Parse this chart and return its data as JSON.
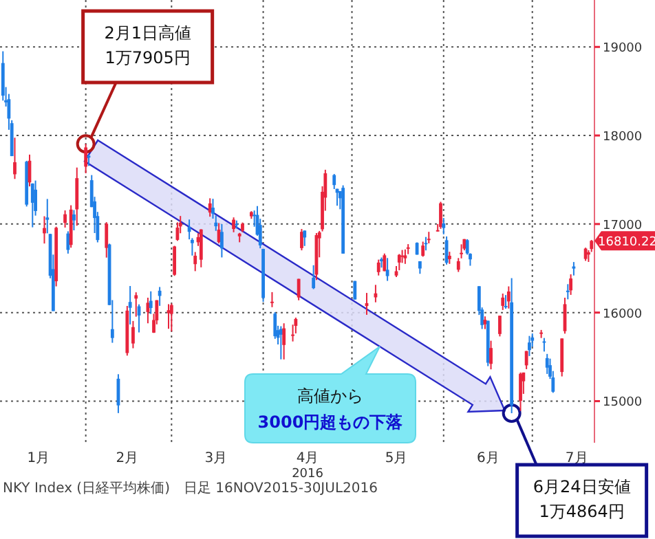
{
  "chart_data": {
    "type": "candlestick",
    "xlabel": "2016",
    "xlim": [
      "2016-01-03",
      "2016-07-22"
    ],
    "xticks": [
      {
        "value": "2016-01-16",
        "label": "1月"
      },
      {
        "value": "2016-02-01",
        "label": null
      },
      {
        "value": "2016-02-15",
        "label": "2月"
      },
      {
        "value": "2016-03-01",
        "label": null
      },
      {
        "value": "2016-03-16",
        "label": "3月"
      },
      {
        "value": "2016-04-01",
        "label": null
      },
      {
        "value": "2016-04-16",
        "label": "4月"
      },
      {
        "value": "2016-05-01",
        "label": null
      },
      {
        "value": "2016-05-16",
        "label": "5月"
      },
      {
        "value": "2016-06-01",
        "label": null
      },
      {
        "value": "2016-06-16",
        "label": "6月"
      },
      {
        "value": "2016-07-01",
        "label": null
      },
      {
        "value": "2016-07-16",
        "label": "7月"
      }
    ],
    "ylim": [
      14530,
      19530
    ],
    "yticks": [
      15000,
      16000,
      17000,
      18000,
      19000
    ],
    "grid": true,
    "x": [
      "2016-01-04",
      "2016-01-05",
      "2016-01-06",
      "2016-01-07",
      "2016-01-08",
      "2016-01-12",
      "2016-01-13",
      "2016-01-14",
      "2016-01-15",
      "2016-01-18",
      "2016-01-19",
      "2016-01-20",
      "2016-01-21",
      "2016-01-22",
      "2016-01-25",
      "2016-01-26",
      "2016-01-27",
      "2016-01-28",
      "2016-01-29",
      "2016-02-01",
      "2016-02-02",
      "2016-02-03",
      "2016-02-04",
      "2016-02-05",
      "2016-02-08",
      "2016-02-09",
      "2016-02-10",
      "2016-02-12",
      "2016-02-15",
      "2016-02-16",
      "2016-02-17",
      "2016-02-18",
      "2016-02-19",
      "2016-02-22",
      "2016-02-23",
      "2016-02-24",
      "2016-02-25",
      "2016-02-26",
      "2016-02-29",
      "2016-03-01",
      "2016-03-02",
      "2016-03-03",
      "2016-03-04",
      "2016-03-07",
      "2016-03-08",
      "2016-03-09",
      "2016-03-10",
      "2016-03-11",
      "2016-03-14",
      "2016-03-15",
      "2016-03-16",
      "2016-03-17",
      "2016-03-18",
      "2016-03-22",
      "2016-03-23",
      "2016-03-24",
      "2016-03-25",
      "2016-03-28",
      "2016-03-29",
      "2016-03-30",
      "2016-03-31",
      "2016-04-01",
      "2016-04-04",
      "2016-04-05",
      "2016-04-06",
      "2016-04-07",
      "2016-04-08",
      "2016-04-11",
      "2016-04-12",
      "2016-04-13",
      "2016-04-14",
      "2016-04-15",
      "2016-04-18",
      "2016-04-19",
      "2016-04-20",
      "2016-04-21",
      "2016-04-22",
      "2016-04-25",
      "2016-04-26",
      "2016-04-27",
      "2016-04-28",
      "2016-05-02",
      "2016-05-06",
      "2016-05-09",
      "2016-05-10",
      "2016-05-11",
      "2016-05-12",
      "2016-05-13",
      "2016-05-16",
      "2016-05-17",
      "2016-05-18",
      "2016-05-19",
      "2016-05-20",
      "2016-05-23",
      "2016-05-24",
      "2016-05-25",
      "2016-05-26",
      "2016-05-27",
      "2016-05-30",
      "2016-05-31",
      "2016-06-01",
      "2016-06-02",
      "2016-06-03",
      "2016-06-06",
      "2016-06-07",
      "2016-06-08",
      "2016-06-09",
      "2016-06-10",
      "2016-06-13",
      "2016-06-14",
      "2016-06-15",
      "2016-06-16",
      "2016-06-17",
      "2016-06-20",
      "2016-06-21",
      "2016-06-22",
      "2016-06-23",
      "2016-06-24",
      "2016-06-27",
      "2016-06-28",
      "2016-06-29",
      "2016-06-30",
      "2016-07-01",
      "2016-07-04",
      "2016-07-05",
      "2016-07-06",
      "2016-07-07",
      "2016-07-08",
      "2016-07-11",
      "2016-07-12",
      "2016-07-13",
      "2016-07-14",
      "2016-07-15",
      "2016-07-19",
      "2016-07-20",
      "2016-07-21"
    ],
    "ohlc": [
      [
        18818,
        18951,
        18394,
        18450
      ],
      [
        18398,
        18547,
        18327,
        18374
      ],
      [
        18410,
        18469,
        18064,
        18191
      ],
      [
        18139,
        18172,
        17767,
        17767
      ],
      [
        17562,
        17975,
        17509,
        17698
      ],
      [
        17704,
        17714,
        17198,
        17219
      ],
      [
        17470,
        17784,
        17425,
        17715
      ],
      [
        17458,
        17459,
        16963,
        17240
      ],
      [
        17388,
        17491,
        17095,
        17147
      ],
      [
        16895,
        17088,
        16780,
        16955
      ],
      [
        17074,
        17283,
        16895,
        17048
      ],
      [
        16888,
        16890,
        16387,
        16416
      ],
      [
        16491,
        16655,
        16017,
        16017
      ],
      [
        16354,
        16970,
        16296,
        16958
      ],
      [
        17013,
        17154,
        16960,
        17110
      ],
      [
        16893,
        16918,
        16666,
        16708
      ],
      [
        16764,
        17212,
        16733,
        17163
      ],
      [
        17108,
        17158,
        16929,
        17041
      ],
      [
        17166,
        17638,
        16981,
        17518
      ],
      [
        17649,
        17905,
        17573,
        17865
      ],
      [
        17772,
        17783,
        17656,
        17750
      ],
      [
        17495,
        17553,
        17191,
        17191
      ],
      [
        17256,
        17308,
        16898,
        17068
      ],
      [
        17090,
        17137,
        16793,
        16819
      ],
      [
        16730,
        17021,
        16621,
        17004
      ],
      [
        16770,
        16778,
        16085,
        16085
      ],
      [
        15813,
        16141,
        15659,
        15713
      ],
      [
        15253,
        15304,
        14865,
        14952
      ],
      [
        15543,
        16075,
        15514,
        16022
      ],
      [
        16120,
        16300,
        15866,
        16054
      ],
      [
        15651,
        15905,
        15597,
        15836
      ],
      [
        16158,
        16229,
        15954,
        16196
      ],
      [
        16071,
        16093,
        15776,
        15967
      ],
      [
        16006,
        16168,
        15879,
        16111
      ],
      [
        16133,
        16240,
        15985,
        16052
      ],
      [
        15773,
        15987,
        15770,
        15916
      ],
      [
        15912,
        16140,
        15867,
        16140
      ],
      [
        16247,
        16289,
        16076,
        16188
      ],
      [
        15993,
        16095,
        15817,
        16027
      ],
      [
        15985,
        16102,
        15786,
        16085
      ],
      [
        16427,
        16754,
        16415,
        16747
      ],
      [
        16821,
        17019,
        16810,
        16960
      ],
      [
        16973,
        17091,
        16896,
        17015
      ],
      [
        16968,
        17051,
        16827,
        16912
      ],
      [
        16821,
        16841,
        16644,
        16784
      ],
      [
        16547,
        16684,
        16468,
        16642
      ],
      [
        16794,
        16896,
        16752,
        16852
      ],
      [
        16597,
        16942,
        16511,
        16939
      ],
      [
        17130,
        17291,
        17083,
        17233
      ],
      [
        17185,
        17285,
        17061,
        17117
      ],
      [
        17016,
        17097,
        16923,
        16975
      ],
      [
        16796,
        17011,
        16782,
        16937
      ],
      [
        16911,
        16999,
        16623,
        16725
      ],
      [
        16944,
        17075,
        16907,
        17049
      ],
      [
        17003,
        17040,
        16949,
        17001
      ],
      [
        16861,
        16900,
        16794,
        16892
      ],
      [
        16924,
        17017,
        16908,
        17003
      ],
      [
        17087,
        17145,
        17059,
        17135
      ],
      [
        17105,
        17153,
        16970,
        17103
      ],
      [
        17103,
        17203,
        16868,
        16879
      ],
      [
        16990,
        17059,
        16726,
        16759
      ],
      [
        16719,
        16719,
        16121,
        16165
      ],
      [
        16118,
        16231,
        16061,
        16123
      ],
      [
        15988,
        16005,
        15704,
        15733
      ],
      [
        15802,
        15851,
        15640,
        15715
      ],
      [
        15815,
        15846,
        15472,
        15750
      ],
      [
        15634,
        15879,
        15471,
        15822
      ],
      [
        15750,
        15864,
        15674,
        15752
      ],
      [
        15850,
        15943,
        15765,
        15928
      ],
      [
        16171,
        16381,
        16139,
        16381
      ],
      [
        16728,
        16944,
        16703,
        16912
      ],
      [
        16926,
        16927,
        16752,
        16848
      ],
      [
        16393,
        16535,
        16265,
        16276
      ],
      [
        16428,
        16898,
        16368,
        16875
      ],
      [
        16839,
        16922,
        16624,
        16906
      ],
      [
        16941,
        17426,
        16917,
        17364
      ],
      [
        17298,
        17613,
        17150,
        17573
      ],
      [
        17553,
        17565,
        17395,
        17440
      ],
      [
        17398,
        17398,
        17207,
        17353
      ],
      [
        17372,
        17372,
        17167,
        17291
      ],
      [
        17409,
        17437,
        16666,
        16666
      ],
      [
        16357,
        16357,
        16147,
        16148
      ],
      [
        16074,
        16222,
        15975,
        16106
      ],
      [
        16172,
        16313,
        16116,
        16217
      ],
      [
        16457,
        16598,
        16419,
        16565
      ],
      [
        16604,
        16622,
        16508,
        16579
      ],
      [
        16468,
        16667,
        16467,
        16647
      ],
      [
        16484,
        16616,
        16358,
        16412
      ],
      [
        16418,
        16525,
        16402,
        16467
      ],
      [
        16565,
        16661,
        16478,
        16652
      ],
      [
        16632,
        16707,
        16561,
        16644
      ],
      [
        16613,
        16713,
        16550,
        16646
      ],
      [
        16729,
        16773,
        16660,
        16736
      ],
      [
        16788,
        16793,
        16654,
        16654
      ],
      [
        16580,
        16580,
        16438,
        16498
      ],
      [
        16641,
        16801,
        16631,
        16757
      ],
      [
        16787,
        16854,
        16702,
        16772
      ],
      [
        16821,
        16912,
        16782,
        16834
      ],
      [
        16931,
        17000,
        16915,
        16931
      ],
      [
        16967,
        17251,
        16946,
        17235
      ],
      [
        17007,
        17068,
        16884,
        16955
      ],
      [
        16817,
        16860,
        16542,
        16562
      ],
      [
        16604,
        16687,
        16550,
        16642
      ],
      [
        16484,
        16616,
        16459,
        16580
      ],
      [
        16673,
        16771,
        16612,
        16675
      ],
      [
        16722,
        16830,
        16703,
        16830
      ],
      [
        16818,
        16829,
        16654,
        16668
      ],
      [
        16664,
        16670,
        16529,
        16601
      ],
      [
        16298,
        16298,
        15973,
        16019
      ],
      [
        16034,
        16058,
        15815,
        15859
      ],
      [
        15868,
        15957,
        15814,
        15919
      ],
      [
        15908,
        15908,
        15395,
        15434
      ],
      [
        15421,
        15682,
        15359,
        15600
      ],
      [
        15758,
        15965,
        15731,
        15965
      ],
      [
        16076,
        16215,
        16029,
        16169
      ],
      [
        16075,
        16198,
        16044,
        16065
      ],
      [
        16126,
        16296,
        16046,
        16238
      ],
      [
        16116,
        16389,
        14864,
        14952
      ],
      [
        15003,
        15323,
        14889,
        15309
      ],
      [
        15224,
        15323,
        15082,
        15323
      ],
      [
        15404,
        15566,
        15361,
        15566
      ],
      [
        15662,
        15736,
        15509,
        15576
      ],
      [
        15719,
        15764,
        15614,
        15682
      ],
      [
        15775,
        15804,
        15713,
        15775
      ],
      [
        15675,
        15713,
        15560,
        15669
      ],
      [
        15486,
        15533,
        15307,
        15378
      ],
      [
        15406,
        15480,
        15251,
        15276
      ],
      [
        15267,
        15340,
        15094,
        15106
      ],
      [
        15329,
        15708,
        15279,
        15708
      ],
      [
        15790,
        16168,
        15762,
        16095
      ],
      [
        16248,
        16321,
        16150,
        16231
      ],
      [
        16251,
        16432,
        16200,
        16385
      ],
      [
        16521,
        16571,
        16419,
        16497
      ],
      [
        16606,
        16733,
        16584,
        16723
      ],
      [
        16655,
        16704,
        16572,
        16681
      ],
      [
        16718,
        16820,
        16685,
        16810.22
      ]
    ],
    "annotations": [
      {
        "text": "2月1日高値\n1万7905円",
        "x": "2016-02-01",
        "y": 17905
      },
      {
        "text": "6月24日安値\n1万4864円",
        "x": "2016-06-24",
        "y": 14864
      },
      {
        "text": "16810.22",
        "x": "2016-07-21",
        "y": 16810.22
      },
      "高値から\n3000円超もの下落",
      "NKY Index (日経平均株価)　日足 16NOV2015-30JUL2016"
    ]
  }
}
